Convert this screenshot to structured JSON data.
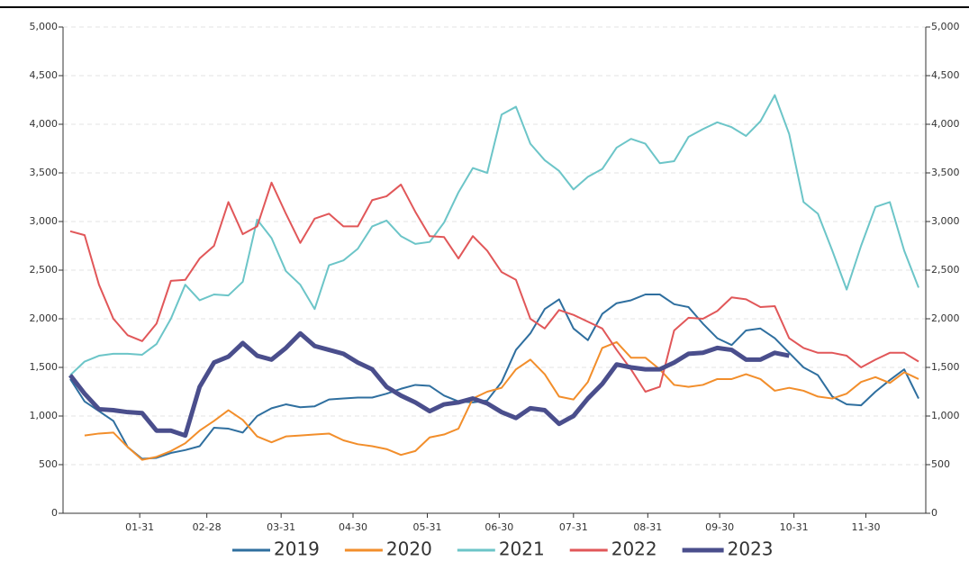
{
  "chart_data": {
    "type": "line",
    "x": [
      2,
      8,
      14,
      20,
      26,
      32,
      38,
      44,
      50,
      56,
      62,
      68,
      74,
      80,
      86,
      92,
      98,
      104,
      110,
      116,
      122,
      128,
      134,
      140,
      146,
      152,
      158,
      164,
      170,
      176,
      182,
      188,
      194,
      200,
      206,
      212,
      218,
      224,
      230,
      236,
      242,
      248,
      254,
      260,
      266,
      272,
      278,
      284,
      290,
      296,
      302,
      308,
      314,
      320,
      326,
      332,
      338,
      344,
      350,
      356
    ],
    "xlim": [
      -1,
      359
    ],
    "xticks": [
      {
        "value": 31,
        "label": "01-31"
      },
      {
        "value": 59,
        "label": "02-28"
      },
      {
        "value": 90,
        "label": "03-31"
      },
      {
        "value": 120,
        "label": "04-30"
      },
      {
        "value": 151,
        "label": "05-31"
      },
      {
        "value": 181,
        "label": "06-30"
      },
      {
        "value": 212,
        "label": "07-31"
      },
      {
        "value": 243,
        "label": "08-31"
      },
      {
        "value": 273,
        "label": "09-30"
      },
      {
        "value": 304,
        "label": "10-31"
      },
      {
        "value": 334,
        "label": "11-30"
      }
    ],
    "ylim": [
      0,
      5000
    ],
    "yticks": [
      0,
      500,
      {
        "value": 1000,
        "label": "1,000"
      },
      {
        "value": 1500,
        "label": "1,500"
      },
      {
        "value": 2000,
        "label": "2,000"
      },
      {
        "value": 2500,
        "label": "2,500"
      },
      {
        "value": 3000,
        "label": "3,000"
      },
      {
        "value": 3500,
        "label": "3,500"
      },
      {
        "value": 4000,
        "label": "4,000"
      },
      {
        "value": 4500,
        "label": "4,500"
      },
      {
        "value": 5000,
        "label": "5,000"
      }
    ],
    "y2lim": [
      0,
      5000
    ],
    "y2ticks": [
      0,
      500,
      {
        "value": 1000,
        "label": "1,000"
      },
      {
        "value": 1500,
        "label": "1,500"
      },
      {
        "value": 2000,
        "label": "2,000"
      },
      {
        "value": 2500,
        "label": "2,500"
      },
      {
        "value": 3000,
        "label": "3,000"
      },
      {
        "value": 3500,
        "label": "3,500"
      },
      {
        "value": 4000,
        "label": "4,000"
      },
      {
        "value": 4500,
        "label": "4,500"
      },
      {
        "value": 5000,
        "label": "5,000"
      }
    ],
    "grid": true,
    "legend": "bottom",
    "series": [
      {
        "name": "2019",
        "color": "#2f6f9f",
        "width": 2,
        "values": [
          1380,
          1150,
          1050,
          950,
          680,
          560,
          570,
          620,
          650,
          690,
          880,
          870,
          830,
          1000,
          1080,
          1120,
          1090,
          1100,
          1170,
          1180,
          1190,
          1190,
          1230,
          1280,
          1320,
          1310,
          1210,
          1150,
          1140,
          1160,
          1350,
          1680,
          1850,
          2100,
          2200,
          1900,
          1780,
          2050,
          2160,
          2190,
          2250,
          2250,
          2150,
          2120,
          1950,
          1800,
          1730,
          1880,
          1900,
          1800,
          1650,
          1500,
          1420,
          1200,
          1120,
          1110,
          1250,
          1370,
          1480,
          1180
        ]
      },
      {
        "name": "2020",
        "color": "#f28e2b",
        "width": 2,
        "values": [
          null,
          800,
          820,
          830,
          680,
          550,
          580,
          640,
          720,
          850,
          950,
          1060,
          960,
          790,
          730,
          790,
          800,
          810,
          820,
          750,
          710,
          690,
          660,
          600,
          640,
          780,
          810,
          870,
          1180,
          1250,
          1290,
          1480,
          1580,
          1430,
          1200,
          1170,
          1350,
          1700,
          1760,
          1600,
          1600,
          1480,
          1320,
          1300,
          1320,
          1380,
          1380,
          1430,
          1380,
          1260,
          1290,
          1260,
          1200,
          1180,
          1230,
          1350,
          1400,
          1340,
          1450,
          1380
        ]
      },
      {
        "name": "2021",
        "color": "#6cc5c8",
        "width": 2,
        "values": [
          1420,
          1560,
          1620,
          1640,
          1640,
          1630,
          1740,
          2000,
          2350,
          2190,
          2250,
          2240,
          2380,
          3020,
          2830,
          2490,
          2350,
          2100,
          2550,
          2600,
          2720,
          2950,
          3010,
          2850,
          2770,
          2790,
          2990,
          3300,
          3550,
          3500,
          4100,
          4180,
          3800,
          3630,
          3520,
          3330,
          3460,
          3540,
          3760,
          3850,
          3800,
          3600,
          3620,
          3870,
          3950,
          4020,
          3970,
          3880,
          4030,
          4300,
          3900,
          3200,
          3080,
          2700,
          2300,
          2750,
          3150,
          3200,
          2700,
          2320
        ]
      },
      {
        "name": "2022",
        "color": "#e15759",
        "width": 2,
        "values": [
          2900,
          2860,
          2350,
          2000,
          1830,
          1770,
          1950,
          2390,
          2400,
          2620,
          2750,
          3200,
          2870,
          2950,
          3400,
          3080,
          2780,
          3030,
          3080,
          2950,
          2950,
          3220,
          3260,
          3380,
          3100,
          2850,
          2840,
          2620,
          2850,
          2700,
          2480,
          2400,
          2000,
          1900,
          2090,
          2040,
          1970,
          1900,
          1680,
          1480,
          1250,
          1300,
          1880,
          2010,
          2000,
          2080,
          2220,
          2200,
          2120,
          2130,
          1800,
          1700,
          1650,
          1650,
          1620,
          1500,
          1580,
          1650,
          1650,
          1560
        ]
      },
      {
        "name": "2023",
        "color": "#4a4e8c",
        "width": 5,
        "values": [
          1420,
          1230,
          1070,
          1060,
          1040,
          1030,
          850,
          850,
          800,
          1300,
          1550,
          1610,
          1750,
          1620,
          1580,
          1700,
          1850,
          1720,
          1680,
          1640,
          1550,
          1480,
          1300,
          1210,
          1140,
          1050,
          1120,
          1140,
          1180,
          1130,
          1040,
          980,
          1080,
          1060,
          920,
          1000,
          1180,
          1330,
          1530,
          1500,
          1480,
          1480,
          1550,
          1640,
          1650,
          1700,
          1680,
          1580,
          1580,
          1650,
          1620,
          null,
          null,
          null,
          null,
          null,
          null,
          null,
          null,
          null
        ]
      }
    ]
  }
}
